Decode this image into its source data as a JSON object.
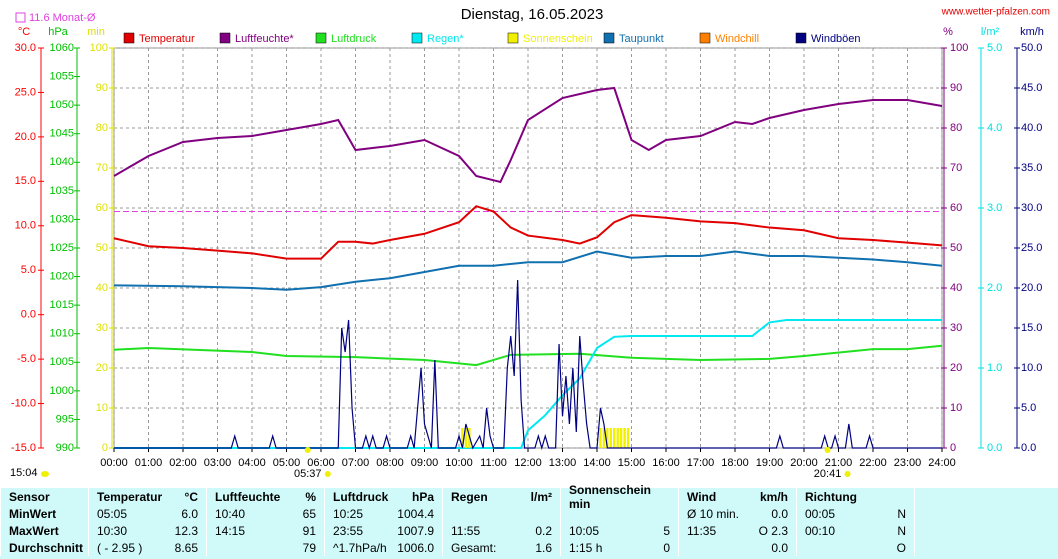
{
  "chart_data": {
    "type": "line",
    "title": "Dienstag, 16.05.2023",
    "source": "www.wetter-pfalzen.com",
    "reference_line": {
      "label": "11.6 Monat-Ø",
      "value": 11.6,
      "axis": 0,
      "color": "#e040e0"
    },
    "time_now": "15:04",
    "sunrise": "05:37",
    "sunset": "20:41",
    "xlim": [
      0,
      24
    ],
    "xticks": [
      {
        "value": 0,
        "label": "00:00"
      },
      {
        "value": 1,
        "label": "01:00"
      },
      {
        "value": 2,
        "label": "02:00"
      },
      {
        "value": 3,
        "label": "03:00"
      },
      {
        "value": 4,
        "label": "04:00"
      },
      {
        "value": 5,
        "label": "05:00"
      },
      {
        "value": 6,
        "label": "06:00"
      },
      {
        "value": 7,
        "label": "07:00"
      },
      {
        "value": 8,
        "label": "08:00"
      },
      {
        "value": 9,
        "label": "09:00"
      },
      {
        "value": 10,
        "label": "10:00"
      },
      {
        "value": 11,
        "label": "11:00"
      },
      {
        "value": 12,
        "label": "12:00"
      },
      {
        "value": 13,
        "label": "13:00"
      },
      {
        "value": 14,
        "label": "14:00"
      },
      {
        "value": 15,
        "label": "15:00"
      },
      {
        "value": 16,
        "label": "16:00"
      },
      {
        "value": 17,
        "label": "17:00"
      },
      {
        "value": 18,
        "label": "18:00"
      },
      {
        "value": 19,
        "label": "19:00"
      },
      {
        "value": 20,
        "label": "20:00"
      },
      {
        "value": 21,
        "label": "21:00"
      },
      {
        "value": 22,
        "label": "22:00"
      },
      {
        "value": 23,
        "label": "23:00"
      },
      {
        "value": 24,
        "label": "24:00"
      }
    ],
    "grid": true,
    "axes": [
      {
        "unit": "°C",
        "side": "left",
        "color": "#ff0000",
        "lim": [
          -15,
          30
        ],
        "ticks": [
          {
            "value": -15,
            "label": "-15.0"
          },
          {
            "value": -10,
            "label": "-10.0"
          },
          {
            "value": -5,
            "label": "-5.0"
          },
          {
            "value": 0,
            "label": "0.0"
          },
          {
            "value": 5,
            "label": "5.0"
          },
          {
            "value": 10,
            "label": "10.0"
          },
          {
            "value": 15,
            "label": "15.0"
          },
          {
            "value": 20,
            "label": "20.0"
          },
          {
            "value": 25,
            "label": "25.0"
          },
          {
            "value": 30,
            "label": "30.0"
          }
        ]
      },
      {
        "unit": "hPa",
        "side": "left",
        "color": "#00c000",
        "lim": [
          990,
          1060
        ],
        "ticks": [
          990,
          995,
          1000,
          1005,
          1010,
          1015,
          1020,
          1025,
          1030,
          1035,
          1040,
          1045,
          1050,
          1055,
          1060
        ]
      },
      {
        "unit": "min",
        "side": "left",
        "color": "#e0e000",
        "lim": [
          0,
          100
        ],
        "ticks": [
          0,
          10,
          20,
          30,
          40,
          50,
          60,
          70,
          80,
          90,
          100
        ]
      },
      {
        "unit": "%",
        "side": "right",
        "color": "#800080",
        "lim": [
          0,
          100
        ],
        "ticks": [
          0,
          10,
          20,
          30,
          40,
          50,
          60,
          70,
          80,
          90,
          100
        ]
      },
      {
        "unit": "l/m²",
        "side": "right",
        "color": "#00e0e0",
        "lim": [
          0,
          5
        ],
        "ticks": [
          {
            "value": 0,
            "label": "0.0"
          },
          {
            "value": 1,
            "label": "1.0"
          },
          {
            "value": 2,
            "label": "2.0"
          },
          {
            "value": 3,
            "label": "3.0"
          },
          {
            "value": 4,
            "label": "4.0"
          },
          {
            "value": 5,
            "label": "5.0"
          }
        ]
      },
      {
        "unit": "km/h",
        "side": "right",
        "color": "#000080",
        "lim": [
          0,
          50
        ],
        "ticks": [
          {
            "value": 0,
            "label": "0.0"
          },
          {
            "value": 5,
            "label": "5.0"
          },
          {
            "value": 10,
            "label": "10.0"
          },
          {
            "value": 15,
            "label": "15.0"
          },
          {
            "value": 20,
            "label": "20.0"
          },
          {
            "value": 25,
            "label": "25.0"
          },
          {
            "value": 30,
            "label": "30.0"
          },
          {
            "value": 35,
            "label": "35.0"
          },
          {
            "value": 40,
            "label": "40.0"
          },
          {
            "value": 45,
            "label": "45.0"
          },
          {
            "value": 50,
            "label": "50.0"
          }
        ]
      }
    ],
    "series": [
      {
        "name": "Temperatur",
        "color": "#e00000",
        "axis": 0,
        "type": "line",
        "x": [
          0,
          1,
          2,
          3,
          4,
          5,
          6,
          6.5,
          7,
          7.5,
          8,
          9,
          10,
          10.5,
          11,
          11.5,
          12,
          13,
          13.5,
          14,
          14.5,
          15,
          16,
          17,
          18,
          19,
          20,
          21,
          22,
          23,
          24
        ],
        "values": [
          8.6,
          7.7,
          7.5,
          7.2,
          6.9,
          6.3,
          6.3,
          8.2,
          8.2,
          8.0,
          8.4,
          9.1,
          10.4,
          12.2,
          11.6,
          9.8,
          8.9,
          8.4,
          8.0,
          8.7,
          10.4,
          11.2,
          10.9,
          10.5,
          10.3,
          9.8,
          9.5,
          8.6,
          8.4,
          8.1,
          7.8
        ]
      },
      {
        "name": "Luftfeuchte*",
        "color": "#800080",
        "axis": 3,
        "type": "line",
        "x": [
          0,
          1,
          2,
          3,
          4,
          5,
          6,
          6.5,
          7,
          8,
          9,
          10,
          10.5,
          11.2,
          11.5,
          12,
          13,
          14,
          14.5,
          15,
          15.5,
          16,
          17,
          18,
          18.5,
          19,
          20,
          21,
          22,
          23,
          24
        ],
        "values": [
          68,
          73,
          76.5,
          77.5,
          78,
          79.5,
          81,
          82,
          74.5,
          75.5,
          77,
          73,
          68,
          66.5,
          72,
          82,
          87.5,
          89.5,
          90,
          77,
          74.5,
          77,
          78,
          81.5,
          81,
          82.5,
          84.5,
          86,
          87,
          87,
          85.5
        ]
      },
      {
        "name": "Luftdruck",
        "color": "#20e020",
        "axis": 1,
        "type": "line",
        "x": [
          0,
          1,
          4,
          5,
          7,
          9,
          10.5,
          11.5,
          13.5,
          15,
          17,
          19,
          20,
          22,
          23,
          24
        ],
        "values": [
          1007.2,
          1007.5,
          1006.8,
          1006.1,
          1005.9,
          1005.4,
          1004.5,
          1006.3,
          1006.5,
          1005.8,
          1005.4,
          1005.6,
          1006.1,
          1007.3,
          1007.3,
          1007.9
        ]
      },
      {
        "name": "Regen*",
        "color": "#00e8f0",
        "axis": 4,
        "type": "line",
        "x": [
          0,
          11.8,
          12,
          12.5,
          13,
          13.5,
          14,
          14.5,
          15,
          18.5,
          19,
          19.5,
          24
        ],
        "values": [
          0,
          0,
          0.22,
          0.41,
          0.66,
          0.87,
          1.25,
          1.39,
          1.4,
          1.4,
          1.57,
          1.6,
          1.6
        ]
      },
      {
        "name": "Sonnenschein",
        "color": "#f0f000",
        "axis": 2,
        "type": "bar",
        "x": [
          10.1,
          10.2,
          10.3,
          14.1,
          14.2,
          14.3,
          14.4,
          14.5,
          14.6,
          14.7,
          14.8,
          14.9
        ],
        "values": [
          5,
          5,
          5,
          5,
          5,
          5,
          5,
          5,
          5,
          5,
          5,
          5
        ]
      },
      {
        "name": "Taupunkt",
        "color": "#1070b0",
        "axis": 0,
        "type": "line",
        "x": [
          0,
          2,
          4,
          5,
          6,
          7,
          8,
          9,
          10,
          11,
          12,
          13,
          14,
          15,
          16,
          17,
          18,
          19,
          20,
          21,
          22,
          23,
          24
        ],
        "values": [
          3.3,
          3.2,
          3.0,
          2.8,
          3.1,
          3.7,
          4.1,
          4.8,
          5.5,
          5.5,
          5.9,
          5.9,
          7.1,
          6.4,
          6.6,
          6.6,
          7.1,
          6.6,
          6.6,
          6.4,
          6.2,
          5.9,
          5.5
        ]
      },
      {
        "name": "Windchill",
        "color": "#ff8000",
        "axis": 0,
        "type": "line",
        "x": [],
        "values": []
      },
      {
        "name": "Windböen",
        "color": "#000080",
        "axis": 5,
        "type": "line",
        "x": [
          0,
          3.4,
          3.5,
          3.6,
          4.5,
          4.6,
          4.7,
          6.5,
          6.6,
          6.7,
          6.8,
          6.9,
          7.0,
          7.2,
          7.3,
          7.4,
          7.5,
          7.6,
          7.8,
          7.9,
          8.0,
          8.5,
          8.6,
          8.7,
          8.8,
          8.9,
          9.0,
          9.2,
          9.3,
          9.4,
          9.9,
          10.0,
          10.1,
          10.2,
          10.3,
          10.4,
          10.6,
          10.7,
          10.8,
          10.9,
          11.0,
          11.3,
          11.4,
          11.5,
          11.6,
          11.7,
          11.8,
          11.9,
          12.2,
          12.3,
          12.4,
          12.5,
          12.6,
          12.8,
          12.9,
          13.0,
          13.1,
          13.2,
          13.3,
          13.4,
          13.5,
          13.6,
          13.7,
          13.8,
          14.0,
          14.1,
          14.2,
          14.3,
          19.2,
          19.3,
          19.4,
          20.5,
          20.6,
          20.7,
          20.8,
          20.9,
          21.0,
          21.2,
          21.3,
          21.4,
          21.8,
          21.9,
          22.0,
          24
        ],
        "values": [
          0,
          0,
          1.5,
          0,
          0,
          1.5,
          0,
          0,
          15,
          12,
          16,
          5,
          0,
          0,
          1.5,
          0,
          1.5,
          0,
          0,
          1.5,
          0,
          0,
          1.5,
          0,
          5,
          10,
          3,
          0,
          11,
          0,
          0,
          1.5,
          0,
          3,
          1.5,
          0,
          1.5,
          0,
          5,
          1.5,
          0,
          0,
          10,
          14,
          9,
          21,
          6,
          0,
          0,
          1.5,
          0,
          1.5,
          0,
          0,
          13,
          4,
          9,
          3,
          10,
          2,
          14,
          8,
          3,
          0,
          0,
          5,
          3,
          0,
          0,
          1.5,
          0,
          0,
          1.5,
          0,
          0,
          1.5,
          0,
          0,
          3,
          0,
          0,
          1.5,
          0,
          0
        ]
      }
    ]
  },
  "table": {
    "header": [
      [
        "Sensor"
      ],
      [
        "Temperatur",
        "°C"
      ],
      [
        "Luftfeuchte",
        "%"
      ],
      [
        "Luftdruck",
        "hPa"
      ],
      [
        "Regen",
        "l/m²"
      ],
      [
        "Sonnenschein min"
      ],
      [
        "Wind",
        "km/h"
      ],
      [
        "Richtung"
      ]
    ],
    "rows": [
      [
        [
          "MinWert"
        ],
        [
          "05:05",
          "6.0"
        ],
        [
          "10:40",
          "65"
        ],
        [
          "10:25",
          "1004.4"
        ],
        [],
        [],
        [
          "Ø 10 min.",
          "0.0"
        ],
        [
          "00:05",
          "N"
        ]
      ],
      [
        [
          "MaxWert"
        ],
        [
          "10:30",
          "12.3"
        ],
        [
          "14:15",
          "91"
        ],
        [
          "23:55",
          "1007.9"
        ],
        [
          "11:55",
          "0.2"
        ],
        [
          "10:05",
          "5"
        ],
        [
          "11:35",
          "O 2.3"
        ],
        [
          "00:10",
          "N"
        ]
      ],
      [
        [
          "Durchschnitt"
        ],
        [
          "( - 2.95 )",
          "8.65"
        ],
        [
          "79"
        ],
        [
          "^1.7hPa/h",
          "1006.0"
        ],
        [
          "Gesamt:",
          "1.6"
        ],
        [
          "1:15 h",
          "0"
        ],
        [
          "0.0"
        ],
        [
          "O"
        ]
      ]
    ]
  }
}
